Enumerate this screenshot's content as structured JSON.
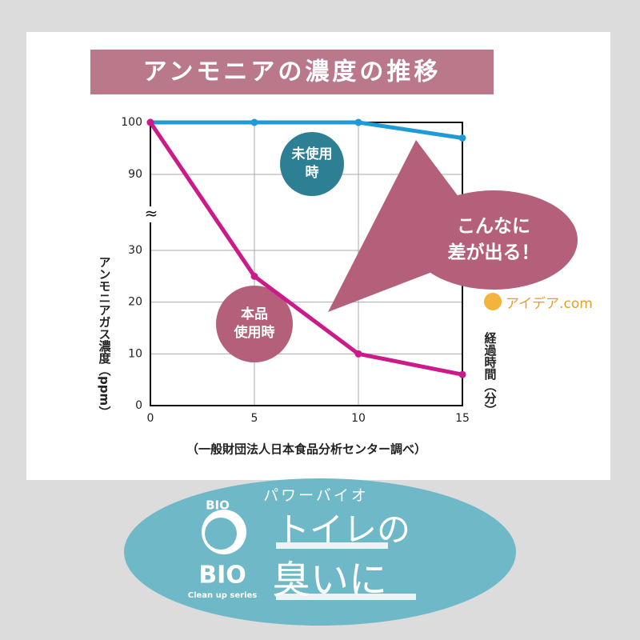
{
  "chart_data": {
    "type": "line",
    "title": "アンモニアの濃度の推移",
    "y_label": "アンモニアガス濃度（ppm）",
    "x_label": "経過時間（分）",
    "source": "（一般財団法人日本食品分析センター調べ）",
    "callout": "こんなに\n差が出る！",
    "brand": "アイデア.com",
    "x": [
      0,
      5,
      10,
      15
    ],
    "series": [
      {
        "name": "未使用\n時",
        "color": "#1e9ad6",
        "values": [
          100,
          100,
          100,
          97
        ]
      },
      {
        "name": "本品\n使用時",
        "color": "#cc1a8a",
        "values": [
          100,
          25,
          10,
          6
        ]
      }
    ],
    "xlim": [
      0,
      15
    ],
    "xticks": [
      0,
      5,
      10,
      15
    ],
    "ylim": [
      0,
      100
    ],
    "yticks": [
      0,
      10,
      20,
      30,
      90,
      100
    ],
    "axis_break": [
      30,
      90
    ],
    "grid": true
  },
  "banner": {
    "kana": "パワーバイオ",
    "logo": "BIO",
    "logo_top": "BIO",
    "series": "Clean up series",
    "line1": "トイレの",
    "line2": "臭いに"
  }
}
